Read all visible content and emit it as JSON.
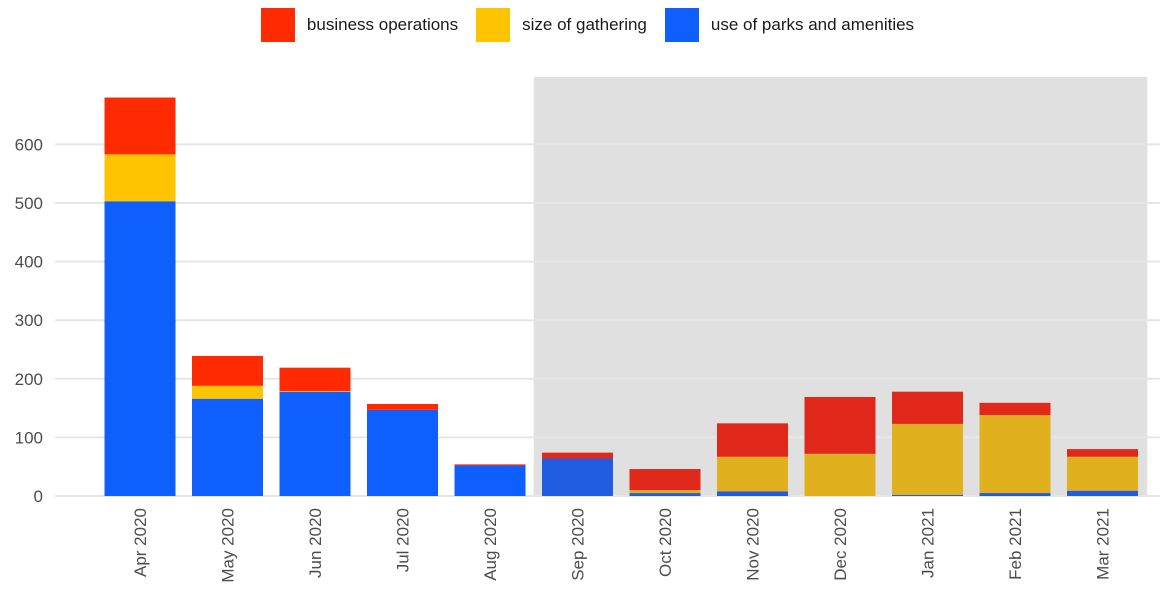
{
  "chart_data": {
    "type": "bar",
    "stacked": true,
    "categories": [
      "Apr 2020",
      "May 2020",
      "Jun 2020",
      "Jul 2020",
      "Aug 2020",
      "Sep 2020",
      "Oct 2020",
      "Nov 2020",
      "Dec 2020",
      "Jan 2021",
      "Feb 2021",
      "Mar 2021"
    ],
    "series": [
      {
        "name": "use of parks and amenities",
        "color": "#0f5fff",
        "values": [
          503,
          166,
          178,
          147,
          52,
          64,
          5,
          8,
          0,
          2,
          5,
          9
        ]
      },
      {
        "name": "size of gathering",
        "color": "#ffc400",
        "values": [
          80,
          22,
          1,
          0,
          0,
          0,
          5,
          59,
          72,
          121,
          133,
          58
        ]
      },
      {
        "name": "business operations",
        "color": "#ff2a00",
        "values": [
          97,
          51,
          40,
          10,
          2,
          10,
          36,
          57,
          97,
          55,
          21,
          13
        ]
      }
    ],
    "shaded_region": {
      "from": "Sep 2020",
      "to": "Mar 2021",
      "color": "#e0e0e0"
    },
    "shaded_colors": {
      "use of parks and amenities": "#1f5ce0",
      "size of gathering": "#e1b01f",
      "business operations": "#e0281b"
    },
    "yticks": [
      0,
      100,
      200,
      300,
      400,
      500,
      600
    ],
    "ylim": [
      0,
      700
    ],
    "xlabel": "",
    "ylabel": "",
    "title": "",
    "legend_position": "top-center",
    "grid": true
  }
}
